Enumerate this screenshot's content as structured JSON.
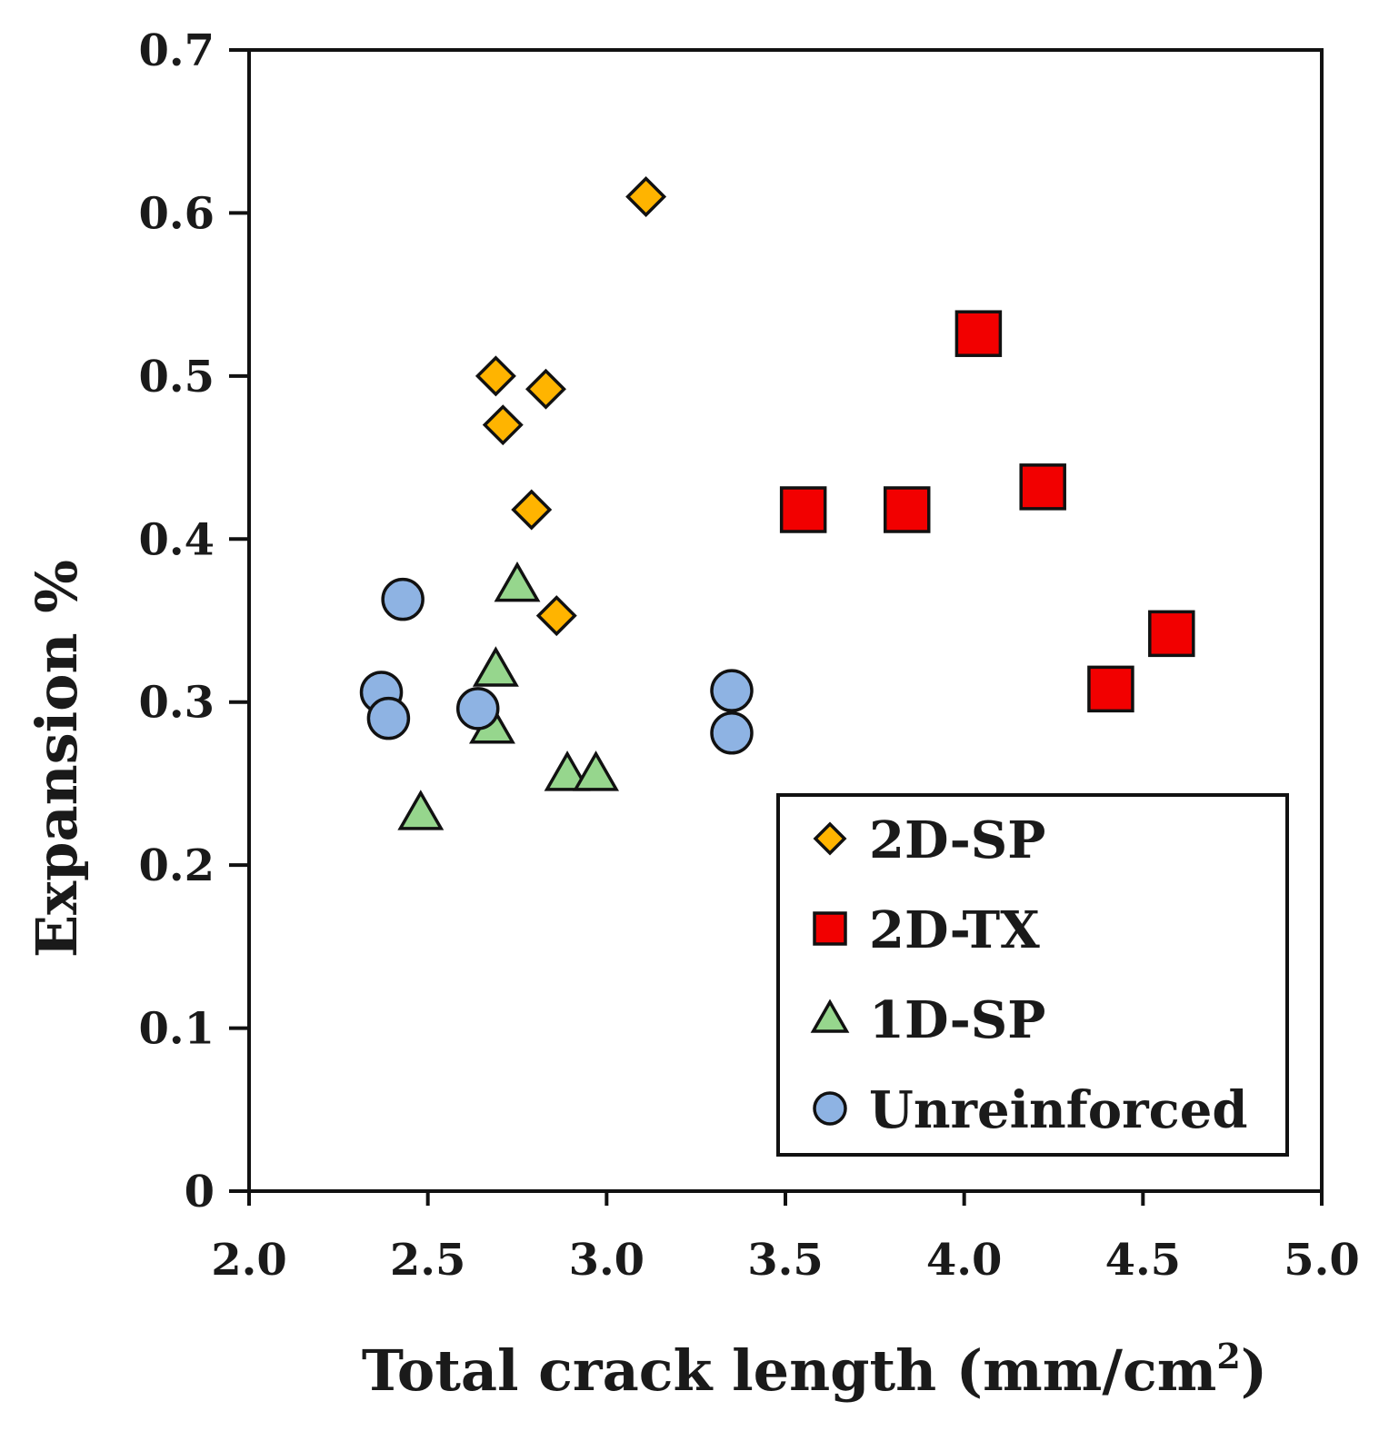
{
  "chart_data": {
    "type": "scatter",
    "title": "",
    "xlabel": "Total crack length (mm/cm",
    "xlabel_sup": "2",
    "xlabel_close": ")",
    "ylabel": "Expansion %",
    "xlim": [
      2.0,
      5.0
    ],
    "ylim": [
      0,
      0.7
    ],
    "x_ticks": [
      2.0,
      2.5,
      3.0,
      3.5,
      4.0,
      4.5,
      5.0
    ],
    "x_tick_labels": [
      "2.0",
      "2.5",
      "3.0",
      "3.5",
      "4.0",
      "4.5",
      "5.0"
    ],
    "y_ticks": [
      0,
      0.1,
      0.2,
      0.3,
      0.4,
      0.5,
      0.6,
      0.7
    ],
    "y_tick_labels": [
      "0",
      "0.1",
      "0.2",
      "0.3",
      "0.4",
      "0.5",
      "0.6",
      "0.7"
    ],
    "grid": false,
    "legend_position": "bottom-right",
    "series": [
      {
        "name": "2D-SP",
        "marker": "diamond",
        "color": "#FFB400",
        "points": [
          {
            "x": 3.11,
            "y": 0.61
          },
          {
            "x": 2.69,
            "y": 0.5
          },
          {
            "x": 2.83,
            "y": 0.492
          },
          {
            "x": 2.71,
            "y": 0.47
          },
          {
            "x": 2.79,
            "y": 0.418
          },
          {
            "x": 2.86,
            "y": 0.353
          }
        ]
      },
      {
        "name": "2D-TX",
        "marker": "square",
        "color": "#F20000",
        "points": [
          {
            "x": 4.04,
            "y": 0.526
          },
          {
            "x": 4.22,
            "y": 0.432
          },
          {
            "x": 3.55,
            "y": 0.418
          },
          {
            "x": 3.84,
            "y": 0.418
          },
          {
            "x": 4.58,
            "y": 0.342
          },
          {
            "x": 4.41,
            "y": 0.308
          }
        ]
      },
      {
        "name": "1D-SP",
        "marker": "triangle",
        "color": "#96D68D",
        "points": [
          {
            "x": 2.75,
            "y": 0.372
          },
          {
            "x": 2.69,
            "y": 0.32
          },
          {
            "x": 2.68,
            "y": 0.285
          },
          {
            "x": 2.89,
            "y": 0.256
          },
          {
            "x": 2.97,
            "y": 0.256
          },
          {
            "x": 2.48,
            "y": 0.232
          }
        ]
      },
      {
        "name": "Unreinforced",
        "marker": "circle",
        "color": "#8EB3E3",
        "points": [
          {
            "x": 2.43,
            "y": 0.363
          },
          {
            "x": 2.37,
            "y": 0.306
          },
          {
            "x": 2.39,
            "y": 0.29
          },
          {
            "x": 2.64,
            "y": 0.296
          },
          {
            "x": 3.35,
            "y": 0.307
          },
          {
            "x": 3.35,
            "y": 0.281
          }
        ]
      }
    ]
  }
}
